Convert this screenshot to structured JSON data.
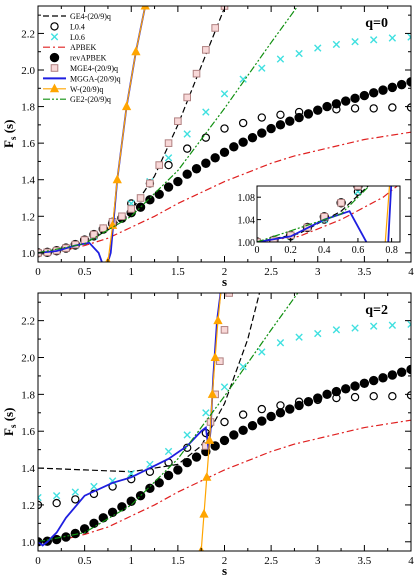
{
  "chart_data": [
    {
      "type": "line",
      "panel_label": "q=0",
      "xlabel": "s",
      "ylabel": "F",
      "ylabel_sub": "s",
      "ylabel_paren": "(s)",
      "xlim": [
        0,
        4
      ],
      "ylim": [
        0.95,
        2.35
      ],
      "xticks": [
        "0",
        "0.5",
        "1",
        "1.5",
        "2",
        "2.5",
        "3",
        "3.5",
        "4"
      ],
      "yticks": [
        "1.0",
        "1.2",
        "1.4",
        "1.6",
        "1.8",
        "2.0",
        "2.2"
      ],
      "ytick_values": [
        1.0,
        1.2,
        1.4,
        1.6,
        1.8,
        2.0,
        2.2
      ],
      "xtick_values": [
        0,
        0.5,
        1,
        1.5,
        2,
        2.5,
        3,
        3.5,
        4
      ],
      "legend": [
        {
          "label": "GE4-(20/9)q",
          "style": "dashed",
          "color": "#000000",
          "marker": "none"
        },
        {
          "label": "L0.4",
          "style": "none",
          "color": "#000000",
          "marker": "open-circle"
        },
        {
          "label": "L0.6",
          "style": "none",
          "color": "#40e0e0",
          "marker": "cross"
        },
        {
          "label": "APBEK",
          "style": "dashdot",
          "color": "#e02020",
          "marker": "none"
        },
        {
          "label": "revAPBEK",
          "style": "none",
          "color": "#000000",
          "marker": "filled-circle"
        },
        {
          "label": "MGE4-(20/9)q",
          "style": "none",
          "color": "#b08080",
          "marker": "open-square"
        },
        {
          "label": "MGGA-(20/9)q",
          "style": "solid",
          "color": "#1f1fe0",
          "marker": "none"
        },
        {
          "label": "W-(20/9)q",
          "style": "solid",
          "color": "#ffa500",
          "marker": "triangle"
        },
        {
          "label": "GE2-(20/9)q",
          "style": "dashdotdot",
          "color": "#109010",
          "marker": "none"
        }
      ],
      "series": [
        {
          "name": "GE4-(20/9)q",
          "x": [
            0,
            0.25,
            0.5,
            0.75,
            1.0,
            1.25,
            1.5,
            1.75,
            2.0,
            2.1
          ],
          "y": [
            1.0,
            1.015,
            1.055,
            1.125,
            1.23,
            1.42,
            1.7,
            2.02,
            2.34,
            2.4
          ]
        },
        {
          "name": "L0.4",
          "x": [
            0,
            0.2,
            0.4,
            0.6,
            0.8,
            1.0,
            1.2,
            1.4,
            1.6,
            1.8,
            2.0,
            2.2,
            2.4,
            2.6,
            2.8,
            3.0,
            3.2,
            3.4,
            3.6,
            3.8,
            4.0
          ],
          "y": [
            1.0,
            1.01,
            1.04,
            1.09,
            1.17,
            1.27,
            1.38,
            1.48,
            1.57,
            1.63,
            1.68,
            1.71,
            1.74,
            1.755,
            1.77,
            1.78,
            1.785,
            1.79,
            1.79,
            1.795,
            1.795
          ]
        },
        {
          "name": "L0.6",
          "x": [
            0,
            0.2,
            0.4,
            0.6,
            0.8,
            1.0,
            1.2,
            1.4,
            1.6,
            1.8,
            2.0,
            2.2,
            2.4,
            2.6,
            2.8,
            3.0,
            3.2,
            3.4,
            3.6,
            3.8,
            4.0
          ],
          "y": [
            1.0,
            1.01,
            1.04,
            1.09,
            1.17,
            1.27,
            1.39,
            1.52,
            1.65,
            1.77,
            1.87,
            1.95,
            2.01,
            2.06,
            2.09,
            2.12,
            2.14,
            2.155,
            2.165,
            2.175,
            2.18
          ]
        },
        {
          "name": "APBEK",
          "x": [
            0,
            0.25,
            0.5,
            0.75,
            1.0,
            1.25,
            1.5,
            1.75,
            2.0,
            2.25,
            2.5,
            2.75,
            3.0,
            3.25,
            3.5,
            3.75,
            4.0
          ],
          "y": [
            1.0,
            1.01,
            1.04,
            1.08,
            1.14,
            1.2,
            1.27,
            1.33,
            1.39,
            1.44,
            1.49,
            1.53,
            1.56,
            1.59,
            1.62,
            1.64,
            1.66
          ]
        },
        {
          "name": "revAPBEK",
          "x": [
            0,
            0.1,
            0.2,
            0.3,
            0.4,
            0.5,
            0.6,
            0.7,
            0.8,
            0.9,
            1.0,
            1.1,
            1.2,
            1.3,
            1.4,
            1.5,
            1.6,
            1.7,
            1.8,
            1.9,
            2.0,
            2.1,
            2.2,
            2.3,
            2.4,
            2.5,
            2.6,
            2.7,
            2.8,
            2.9,
            3.0,
            3.1,
            3.2,
            3.3,
            3.4,
            3.5,
            3.6,
            3.7,
            3.8,
            3.9,
            4.0
          ],
          "y": [
            1.0,
            1.003,
            1.012,
            1.026,
            1.045,
            1.07,
            1.1,
            1.13,
            1.16,
            1.19,
            1.22,
            1.25,
            1.29,
            1.32,
            1.36,
            1.39,
            1.43,
            1.46,
            1.49,
            1.52,
            1.55,
            1.58,
            1.605,
            1.63,
            1.655,
            1.68,
            1.7,
            1.72,
            1.74,
            1.76,
            1.78,
            1.8,
            1.815,
            1.83,
            1.845,
            1.86,
            1.875,
            1.89,
            1.905,
            1.92,
            1.935
          ]
        },
        {
          "name": "MGE4-(20/9)q",
          "x": [
            0,
            0.1,
            0.2,
            0.3,
            0.4,
            0.5,
            0.6,
            0.7,
            0.8,
            0.9,
            1.0,
            1.1,
            1.2,
            1.3,
            1.4,
            1.5,
            1.6,
            1.7,
            1.8,
            1.9,
            2.0
          ],
          "y": [
            1.0,
            1.003,
            1.012,
            1.026,
            1.045,
            1.07,
            1.1,
            1.135,
            1.17,
            1.2,
            1.24,
            1.3,
            1.38,
            1.48,
            1.6,
            1.72,
            1.85,
            1.98,
            2.11,
            2.23,
            2.35
          ]
        },
        {
          "name": "MGGA-(20/9)q",
          "x": [
            0,
            0.2,
            0.4,
            0.55,
            0.65,
            0.72,
            0.78,
            0.85,
            0.95,
            1.05,
            1.15,
            1.22
          ],
          "y": [
            1.0,
            1.01,
            1.04,
            1.055,
            1.0,
            0.9,
            1.0,
            1.4,
            1.8,
            2.1,
            2.35,
            2.45
          ]
        },
        {
          "name": "W-(20/9)q",
          "x": [
            0.75,
            0.8,
            0.85,
            0.95,
            1.05,
            1.15,
            1.22
          ],
          "y": [
            0.95,
            1.15,
            1.4,
            1.8,
            2.1,
            2.35,
            2.45
          ]
        },
        {
          "name": "GE2-(20/9)q",
          "x": [
            0,
            0.5,
            1.0,
            1.5,
            2.0,
            2.5,
            3.0
          ],
          "y": [
            1.0,
            1.05,
            1.2,
            1.45,
            1.79,
            2.15,
            2.5
          ]
        }
      ],
      "inset": {
        "xlim": [
          0,
          0.85
        ],
        "ylim": [
          1.0,
          1.1
        ],
        "xticks": [
          "0",
          "0.2",
          "0.4",
          "0.6",
          "0.8"
        ],
        "xtick_values": [
          0,
          0.2,
          0.4,
          0.6,
          0.8
        ],
        "yticks": [
          "1.00",
          "1.04",
          "1.08"
        ],
        "ytick_values": [
          1.0,
          1.04,
          1.08
        ]
      }
    },
    {
      "type": "line",
      "panel_label": "q=2",
      "xlabel": "s",
      "ylabel": "F",
      "ylabel_sub": "s",
      "ylabel_paren": "(s)",
      "xlim": [
        0,
        4
      ],
      "ylim": [
        0.95,
        2.35
      ],
      "xticks": [
        "0",
        "0.5",
        "1",
        "1.5",
        "2",
        "2.5",
        "3",
        "3.5",
        "4"
      ],
      "yticks": [
        "1.0",
        "1.2",
        "1.4",
        "1.6",
        "1.8",
        "2.0",
        "2.2"
      ],
      "ytick_values": [
        1.0,
        1.2,
        1.4,
        1.6,
        1.8,
        2.0,
        2.2
      ],
      "xtick_values": [
        0,
        0.5,
        1,
        1.5,
        2,
        2.5,
        3,
        3.5,
        4
      ],
      "series": [
        {
          "name": "GE4-(20/9)q",
          "x": [
            0,
            0.5,
            1.0,
            1.5,
            1.75,
            2.0,
            2.25,
            2.4
          ],
          "y": [
            1.4,
            1.39,
            1.38,
            1.42,
            1.52,
            1.75,
            2.1,
            2.4
          ]
        },
        {
          "name": "L0.4",
          "x": [
            0,
            0.2,
            0.4,
            0.6,
            0.8,
            1.0,
            1.2,
            1.4,
            1.6,
            1.8,
            2.0,
            2.2,
            2.4,
            2.6,
            2.8,
            3.0,
            3.2,
            3.4,
            3.6,
            3.8,
            4.0
          ],
          "y": [
            1.2,
            1.21,
            1.23,
            1.26,
            1.3,
            1.34,
            1.38,
            1.43,
            1.51,
            1.59,
            1.65,
            1.69,
            1.72,
            1.74,
            1.76,
            1.77,
            1.78,
            1.785,
            1.79,
            1.79,
            1.795
          ]
        },
        {
          "name": "L0.6",
          "x": [
            0,
            0.2,
            0.4,
            0.6,
            0.8,
            1.0,
            1.2,
            1.4,
            1.6,
            1.8,
            2.0,
            2.2,
            2.4,
            2.6,
            2.8,
            3.0,
            3.2,
            3.4,
            3.6,
            3.8,
            4.0
          ],
          "y": [
            1.24,
            1.25,
            1.27,
            1.3,
            1.33,
            1.37,
            1.42,
            1.49,
            1.58,
            1.7,
            1.84,
            1.95,
            2.03,
            2.08,
            2.11,
            2.13,
            2.15,
            2.16,
            2.17,
            2.175,
            2.18
          ]
        },
        {
          "name": "APBEK",
          "x": [
            0,
            0.25,
            0.5,
            0.75,
            1.0,
            1.25,
            1.5,
            1.75,
            2.0,
            2.25,
            2.5,
            2.75,
            3.0,
            3.25,
            3.5,
            3.75,
            4.0
          ],
          "y": [
            1.0,
            1.01,
            1.04,
            1.08,
            1.14,
            1.2,
            1.27,
            1.33,
            1.39,
            1.44,
            1.49,
            1.53,
            1.56,
            1.59,
            1.62,
            1.64,
            1.66
          ]
        },
        {
          "name": "revAPBEK",
          "x": [
            0,
            0.1,
            0.2,
            0.3,
            0.4,
            0.5,
            0.6,
            0.7,
            0.8,
            0.9,
            1.0,
            1.1,
            1.2,
            1.3,
            1.4,
            1.5,
            1.6,
            1.7,
            1.8,
            1.9,
            2.0,
            2.1,
            2.2,
            2.3,
            2.4,
            2.5,
            2.6,
            2.7,
            2.8,
            2.9,
            3.0,
            3.1,
            3.2,
            3.3,
            3.4,
            3.5,
            3.6,
            3.7,
            3.8,
            3.9,
            4.0
          ],
          "y": [
            1.0,
            1.003,
            1.012,
            1.026,
            1.045,
            1.07,
            1.1,
            1.13,
            1.16,
            1.19,
            1.22,
            1.25,
            1.29,
            1.32,
            1.36,
            1.39,
            1.43,
            1.46,
            1.49,
            1.52,
            1.55,
            1.58,
            1.605,
            1.63,
            1.655,
            1.68,
            1.7,
            1.72,
            1.74,
            1.76,
            1.78,
            1.8,
            1.815,
            1.83,
            1.845,
            1.86,
            1.875,
            1.89,
            1.905,
            1.92,
            1.935
          ]
        },
        {
          "name": "MGE4-(20/9)q",
          "x": [
            1.8,
            1.85,
            1.9,
            1.95,
            2.0,
            2.05
          ],
          "y": [
            1.52,
            1.65,
            1.8,
            1.98,
            2.15,
            2.35
          ]
        },
        {
          "name": "MGGA-(20/9)q",
          "x": [
            0,
            0.05,
            0.1,
            0.2,
            0.3,
            0.5,
            0.8,
            1.0,
            1.2,
            1.4,
            1.6,
            1.75,
            1.8,
            1.83,
            1.85,
            1.88,
            1.92,
            1.97,
            2.0
          ],
          "y": [
            1.0,
            0.98,
            1.0,
            1.05,
            1.13,
            1.25,
            1.32,
            1.35,
            1.4,
            1.45,
            1.52,
            1.6,
            1.62,
            1.5,
            1.6,
            1.9,
            2.2,
            2.4,
            2.45
          ]
        },
        {
          "name": "W-(20/9)q",
          "x": [
            1.75,
            1.78,
            1.81,
            1.84,
            1.87,
            1.9,
            1.93,
            1.97,
            2.0
          ],
          "y": [
            0.95,
            1.15,
            1.35,
            1.55,
            1.8,
            2.0,
            2.2,
            2.4,
            2.45
          ]
        },
        {
          "name": "GE2-(20/9)q",
          "x": [
            0,
            0.5,
            1.0,
            1.5,
            2.0,
            2.5,
            3.0
          ],
          "y": [
            1.0,
            1.05,
            1.2,
            1.45,
            1.79,
            2.15,
            2.5
          ]
        }
      ]
    }
  ]
}
